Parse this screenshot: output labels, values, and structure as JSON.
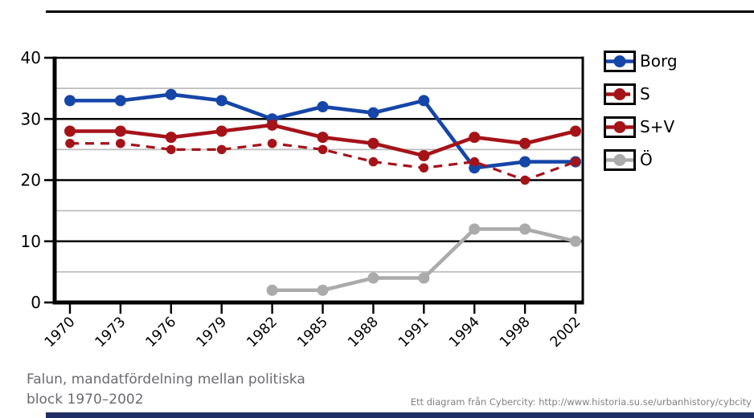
{
  "page": {
    "title_line1": "Falun, mandatfördelning mellan politiska",
    "title_line2": "block 1970–2002",
    "attribution": "Ett diagram från Cybercity: http://www.historia.su.se/urbanhistory/cybcity"
  },
  "colors": {
    "borg": "#1546A8",
    "s": "#A51319",
    "sv": "#A51319",
    "other": "#ABABAB",
    "axis": "#000000",
    "major_grid": "#000000",
    "minor_grid": "#BDBDBD",
    "tick_label": "#000000",
    "top_rule": "#000000",
    "bottom_rule": "#1F2E64"
  },
  "chart_data": {
    "type": "line",
    "title": "Falun, mandatfördelning mellan politiska block 1970–2002",
    "xlabel": "",
    "ylabel": "",
    "x": [
      "1970",
      "1973",
      "1976",
      "1979",
      "1982",
      "1985",
      "1988",
      "1991",
      "1994",
      "1998",
      "2002"
    ],
    "series": [
      {
        "name": "Borg",
        "color_key": "borg",
        "style": "solid",
        "values": [
          33,
          33,
          34,
          33,
          30,
          32,
          31,
          33,
          22,
          23,
          23
        ]
      },
      {
        "name": "S",
        "color_key": "s",
        "style": "dashed",
        "values": [
          26,
          26,
          25,
          25,
          26,
          25,
          23,
          22,
          23,
          20,
          23
        ]
      },
      {
        "name": "S+V",
        "color_key": "sv",
        "style": "solid",
        "values": [
          28,
          28,
          27,
          28,
          29,
          27,
          26,
          24,
          27,
          26,
          28
        ]
      },
      {
        "name": "Ö",
        "color_key": "other",
        "style": "solid",
        "values": [
          null,
          null,
          null,
          null,
          2,
          2,
          4,
          4,
          12,
          12,
          10
        ]
      }
    ],
    "ylim": [
      0,
      40
    ],
    "yticks": [
      0,
      10,
      20,
      30,
      40
    ],
    "minor_gridlines": [
      5,
      15,
      25,
      35
    ],
    "grid": "on",
    "legend_position": "right",
    "legend_order": [
      "Borg",
      "S",
      "S+V",
      "Ö"
    ]
  }
}
